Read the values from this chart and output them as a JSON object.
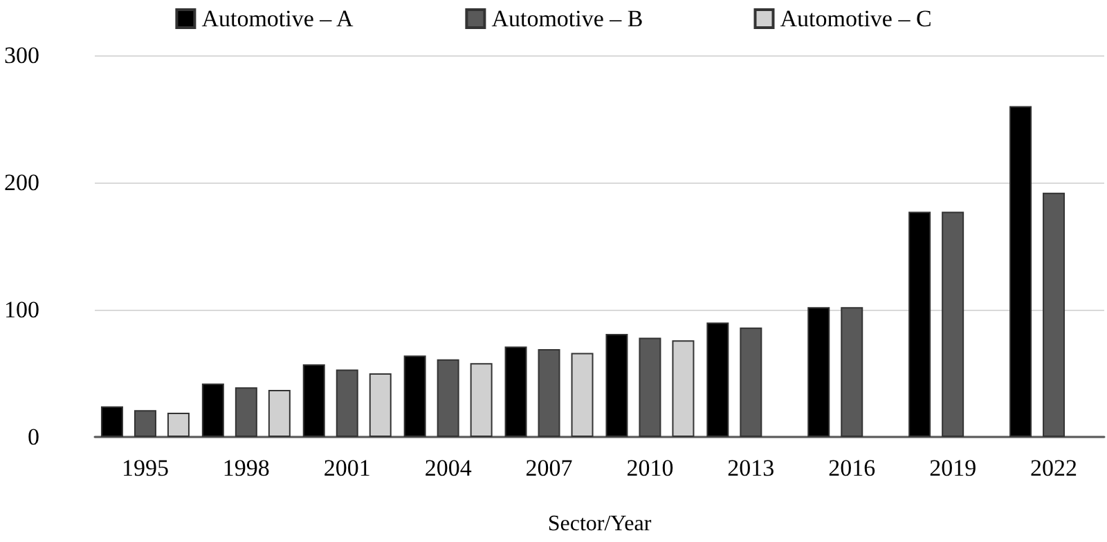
{
  "chart_data": {
    "type": "bar",
    "xlabel": "Sector/Year",
    "categories": [
      "1995",
      "1998",
      "2001",
      "2004",
      "2007",
      "2010",
      "2013",
      "2016",
      "2019",
      "2022"
    ],
    "series": [
      {
        "name": "Automotive – A",
        "color": "#000000",
        "values": [
          24,
          42,
          57,
          64,
          71,
          81,
          90,
          102,
          177,
          260
        ]
      },
      {
        "name": "Automotive – B",
        "color": "#595959",
        "values": [
          21,
          39,
          53,
          61,
          69,
          78,
          86,
          102,
          177,
          192
        ]
      },
      {
        "name": "Automotive – C",
        "color": "#d0d0d0",
        "values": [
          19,
          37,
          50,
          58,
          66,
          76,
          null,
          null,
          null,
          null
        ]
      }
    ],
    "ylim": [
      0,
      300
    ],
    "yticks": [
      0,
      100,
      200,
      300
    ],
    "grid": "y",
    "legend": "top"
  }
}
